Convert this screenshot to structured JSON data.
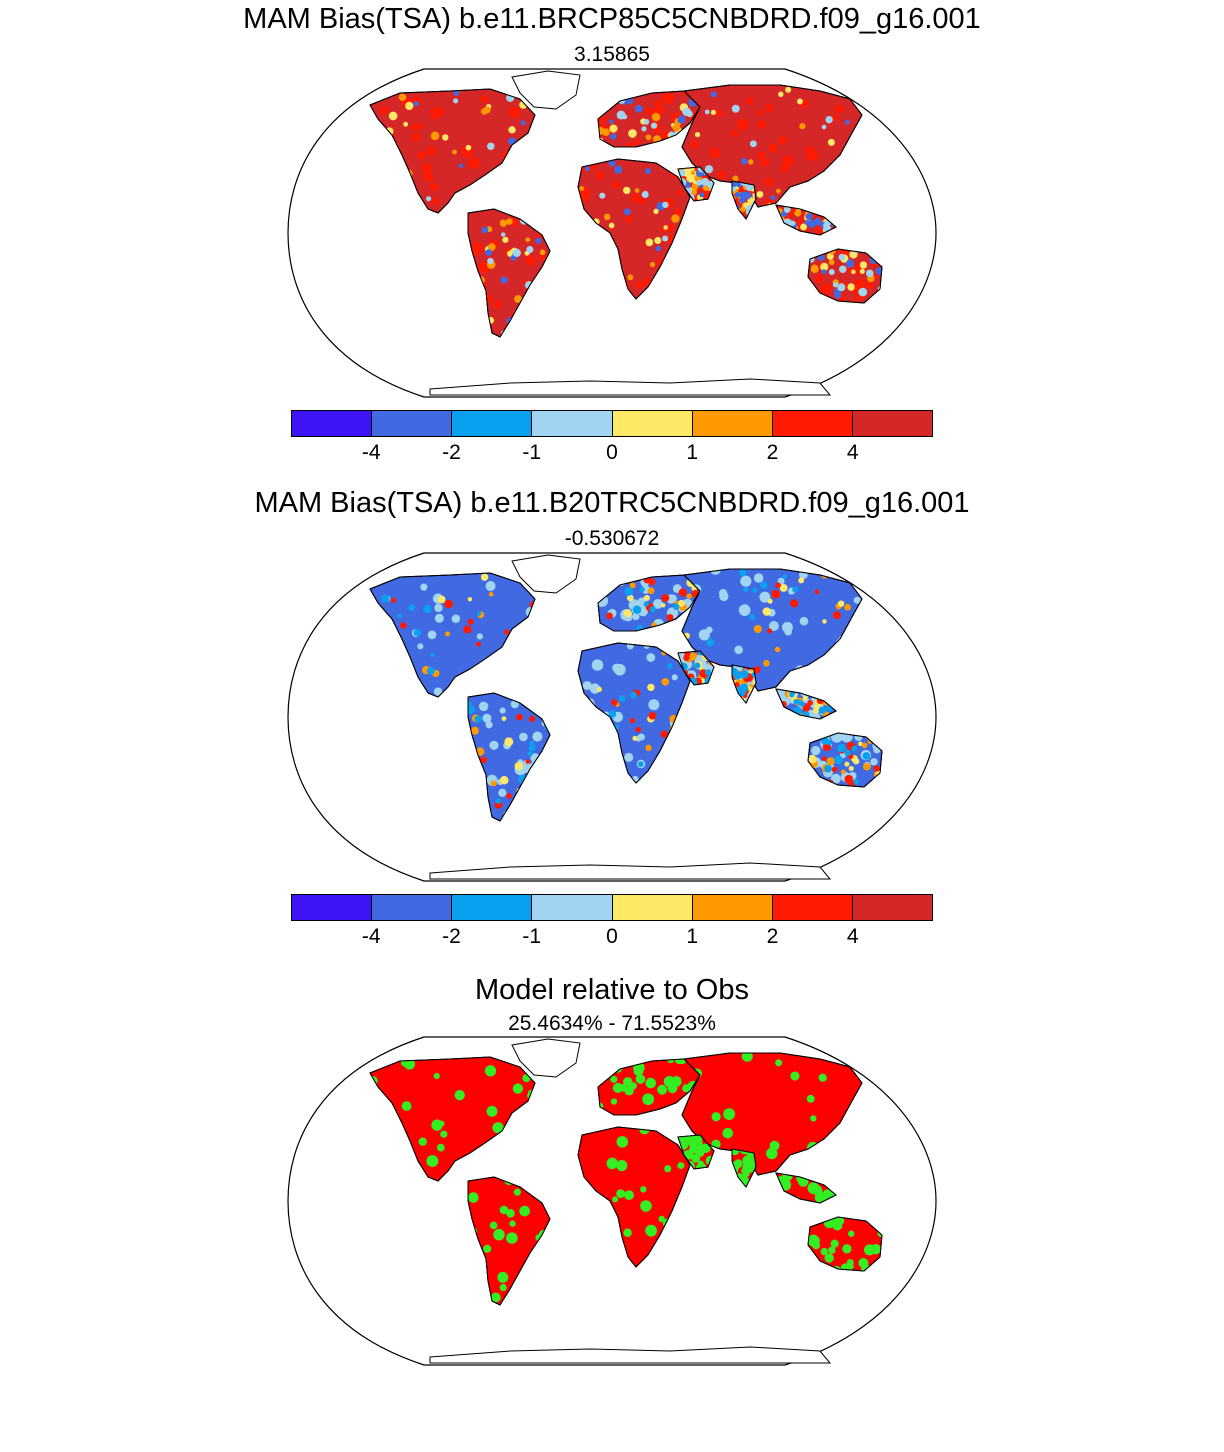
{
  "panels": [
    {
      "title": "MAM Bias(TSA) b.e11.BRCP85C5CNBDRD.f09_g16.001",
      "subtitle": "3.15865",
      "dominant_color": "#d62728",
      "secondary_color": "#ff1a00",
      "accent_colors": [
        "#ffe866",
        "#ff9900",
        "#4169e1",
        "#a0d4f0"
      ]
    },
    {
      "title": "MAM Bias(TSA) b.e11.B20TRC5CNBDRD.f09_g16.001",
      "subtitle": "-0.530672",
      "dominant_color": "#4169e1",
      "secondary_color": "#a0d4f0",
      "accent_colors": [
        "#ff9900",
        "#ffe866",
        "#ff1a00",
        "#0aa0f0"
      ]
    },
    {
      "title": "Model relative to Obs",
      "subtitle": "25.4634% - 71.5523%",
      "dominant_color": "#ff0000",
      "secondary_color": "#33ee22",
      "accent_colors": []
    }
  ],
  "colorbar": {
    "colors": [
      "#3c14f5",
      "#4169e1",
      "#0aa0f0",
      "#a0d4f0",
      "#ffe866",
      "#ff9900",
      "#ff1a00",
      "#d62728"
    ],
    "labels": [
      "-4",
      "-2",
      "-1",
      "0",
      "1",
      "2",
      "4"
    ]
  }
}
